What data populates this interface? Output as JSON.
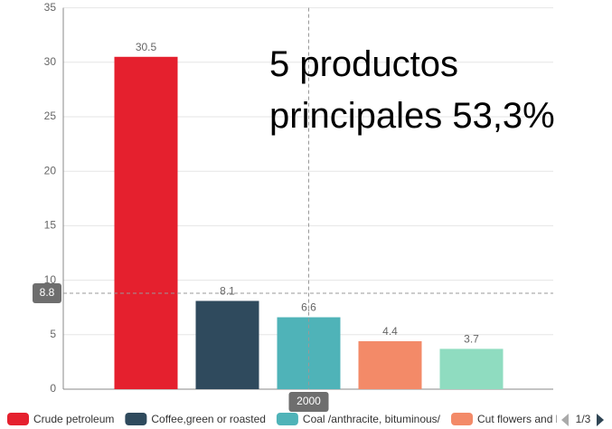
{
  "chart_data": {
    "type": "bar",
    "annotation": [
      "5 productos",
      "principales 53,3%"
    ],
    "categories": [
      "2000"
    ],
    "series": [
      {
        "name": "Crude petroleum",
        "color": "#e5202e",
        "values": [
          30.5
        ]
      },
      {
        "name": "Coffee,green or roasted",
        "color": "#2f4a5d",
        "values": [
          8.1
        ]
      },
      {
        "name": "Coal /anthracite, bituminous/",
        "color": "#4fb3b8",
        "values": [
          6.6
        ]
      },
      {
        "name": "Cut flowers and buds for",
        "color": "#f38a68",
        "values": [
          4.4
        ]
      },
      {
        "color": "#8fdcc0",
        "values": [
          3.7
        ]
      }
    ],
    "ylim": [
      0,
      35
    ],
    "yticks": [
      0,
      5,
      10,
      15,
      20,
      25,
      30,
      35
    ],
    "grid": true,
    "pointer_y": 8.8,
    "legend_page": "1/3"
  }
}
